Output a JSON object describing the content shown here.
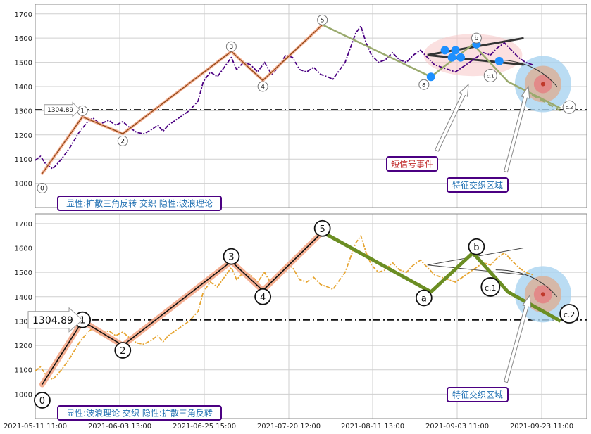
{
  "chart_data": [
    {
      "type": "line",
      "title": "",
      "ylim": [
        900,
        1740
      ],
      "yticks": [
        1000,
        1100,
        1200,
        1300,
        1400,
        1500,
        1600,
        1700
      ],
      "grid": true,
      "reference_line": {
        "value": 1304.89,
        "label": "1304.89"
      },
      "series": [
        {
          "style": "dash-dot",
          "color": "#4b0082",
          "points": [
            [
              0.0,
              1095
            ],
            [
              0.3,
              1112
            ],
            [
              0.6,
              1080
            ],
            [
              1.0,
              1060
            ],
            [
              1.5,
              1100
            ],
            [
              2.0,
              1150
            ],
            [
              2.5,
              1210
            ],
            [
              3.0,
              1255
            ],
            [
              3.3,
              1270
            ],
            [
              3.7,
              1245
            ],
            [
              4.2,
              1260
            ],
            [
              4.6,
              1240
            ],
            [
              5.0,
              1255
            ],
            [
              5.4,
              1230
            ],
            [
              5.8,
              1210
            ],
            [
              6.2,
              1205
            ],
            [
              6.6,
              1220
            ],
            [
              7.0,
              1240
            ],
            [
              7.3,
              1215
            ],
            [
              7.6,
              1240
            ],
            [
              8.0,
              1260
            ],
            [
              8.4,
              1280
            ],
            [
              8.8,
              1300
            ],
            [
              9.3,
              1340
            ],
            [
              9.6,
              1420
            ],
            [
              10.0,
              1460
            ],
            [
              10.4,
              1440
            ],
            [
              10.8,
              1480
            ],
            [
              11.2,
              1520
            ],
            [
              11.5,
              1470
            ],
            [
              11.9,
              1500
            ],
            [
              12.3,
              1490
            ],
            [
              12.7,
              1460
            ],
            [
              13.1,
              1500
            ],
            [
              13.5,
              1450
            ],
            [
              13.9,
              1480
            ],
            [
              14.3,
              1530
            ],
            [
              14.7,
              1520
            ],
            [
              15.1,
              1470
            ],
            [
              15.5,
              1460
            ],
            [
              15.9,
              1480
            ],
            [
              16.3,
              1450
            ],
            [
              16.7,
              1440
            ],
            [
              17.0,
              1430
            ],
            [
              17.4,
              1470
            ],
            [
              17.7,
              1500
            ],
            [
              18.0,
              1560
            ],
            [
              18.3,
              1620
            ],
            [
              18.6,
              1650
            ],
            [
              18.9,
              1580
            ],
            [
              19.2,
              1530
            ],
            [
              19.6,
              1500
            ],
            [
              20.0,
              1510
            ],
            [
              20.4,
              1540
            ],
            [
              20.8,
              1510
            ],
            [
              21.2,
              1500
            ],
            [
              21.6,
              1530
            ],
            [
              22.0,
              1550
            ],
            [
              22.4,
              1520
            ],
            [
              22.8,
              1490
            ],
            [
              23.2,
              1480
            ],
            [
              23.6,
              1470
            ],
            [
              24.0,
              1460
            ],
            [
              24.4,
              1480
            ],
            [
              24.8,
              1500
            ],
            [
              25.2,
              1520
            ],
            [
              25.6,
              1540
            ],
            [
              26.0,
              1530
            ],
            [
              26.4,
              1560
            ],
            [
              26.8,
              1580
            ],
            [
              27.2,
              1550
            ],
            [
              27.6,
              1520
            ],
            [
              28.0,
              1500
            ],
            [
              28.4,
              1490
            ]
          ]
        },
        {
          "style": "solid",
          "color": "#8b4513",
          "highlight": "#f4a98a",
          "points": [
            [
              0.4,
              1040
            ],
            [
              2.7,
              1275
            ],
            [
              5.0,
              1205
            ],
            [
              11.2,
              1545
            ],
            [
              13.0,
              1425
            ],
            [
              16.4,
              1655
            ]
          ]
        },
        {
          "style": "solid",
          "color": "#9aaa6e",
          "points": [
            [
              16.4,
              1655
            ],
            [
              22.6,
              1440
            ],
            [
              25.0,
              1575
            ],
            [
              27.0,
              1420
            ],
            [
              30.0,
              1310
            ]
          ]
        }
      ],
      "wave_labels": [
        {
          "label": "0",
          "x": 0.4,
          "y": 980
        },
        {
          "label": "1",
          "x": 2.7,
          "y": 1300
        },
        {
          "label": "2",
          "x": 5.0,
          "y": 1175
        },
        {
          "label": "3",
          "x": 11.2,
          "y": 1565
        },
        {
          "label": "4",
          "x": 13.0,
          "y": 1400
        },
        {
          "label": "5",
          "x": 16.4,
          "y": 1675
        },
        {
          "label": "a",
          "x": 22.2,
          "y": 1408
        },
        {
          "label": "b",
          "x": 25.2,
          "y": 1600
        },
        {
          "label": "c.1",
          "x": 26.0,
          "y": 1445
        },
        {
          "label": "c.2",
          "x": 30.5,
          "y": 1315
        }
      ],
      "annotations": [
        {
          "text": "显性:扩散三角反转 交织 隐性:波浪理论",
          "color": "#1f6fb2",
          "border": "#4b0082"
        },
        {
          "text": "短信号事件",
          "color": "#c02a2a",
          "border": "#4b0082"
        },
        {
          "text": "特征交织区域",
          "color": "#1f6fb2",
          "border": "#4b0082"
        }
      ]
    },
    {
      "type": "line",
      "title": "",
      "ylim": [
        900,
        1740
      ],
      "yticks": [
        1000,
        1100,
        1200,
        1300,
        1400,
        1500,
        1600,
        1700
      ],
      "grid": true,
      "reference_line": {
        "value": 1304.89,
        "label": "1304.89"
      },
      "x_tick_labels": [
        "2021-05-11 11:00",
        "2021-06-03 13:00",
        "2021-06-25 15:00",
        "2021-07-20 12:00",
        "2021-08-11 13:00",
        "2021-09-03 11:00",
        "2021-09-23 11:00"
      ],
      "series": [
        {
          "style": "dash-dot",
          "color": "#e6a532",
          "points": [
            [
              0.0,
              1095
            ],
            [
              0.3,
              1112
            ],
            [
              0.6,
              1080
            ],
            [
              1.0,
              1060
            ],
            [
              1.5,
              1100
            ],
            [
              2.0,
              1150
            ],
            [
              2.5,
              1210
            ],
            [
              3.0,
              1255
            ],
            [
              3.3,
              1270
            ],
            [
              3.7,
              1245
            ],
            [
              4.2,
              1260
            ],
            [
              4.6,
              1240
            ],
            [
              5.0,
              1255
            ],
            [
              5.4,
              1230
            ],
            [
              5.8,
              1210
            ],
            [
              6.2,
              1205
            ],
            [
              6.6,
              1220
            ],
            [
              7.0,
              1240
            ],
            [
              7.3,
              1215
            ],
            [
              7.6,
              1240
            ],
            [
              8.0,
              1260
            ],
            [
              8.4,
              1280
            ],
            [
              8.8,
              1300
            ],
            [
              9.3,
              1340
            ],
            [
              9.6,
              1420
            ],
            [
              10.0,
              1460
            ],
            [
              10.4,
              1440
            ],
            [
              10.8,
              1480
            ],
            [
              11.2,
              1520
            ],
            [
              11.5,
              1470
            ],
            [
              11.9,
              1500
            ],
            [
              12.3,
              1490
            ],
            [
              12.7,
              1460
            ],
            [
              13.1,
              1500
            ],
            [
              13.5,
              1450
            ],
            [
              13.9,
              1480
            ],
            [
              14.3,
              1530
            ],
            [
              14.7,
              1520
            ],
            [
              15.1,
              1470
            ],
            [
              15.5,
              1460
            ],
            [
              15.9,
              1480
            ],
            [
              16.3,
              1450
            ],
            [
              16.7,
              1440
            ],
            [
              17.0,
              1430
            ],
            [
              17.4,
              1470
            ],
            [
              17.7,
              1500
            ],
            [
              18.0,
              1560
            ],
            [
              18.3,
              1620
            ],
            [
              18.6,
              1650
            ],
            [
              18.9,
              1580
            ],
            [
              19.2,
              1530
            ],
            [
              19.6,
              1500
            ],
            [
              20.0,
              1510
            ],
            [
              20.4,
              1540
            ],
            [
              20.8,
              1510
            ],
            [
              21.2,
              1500
            ],
            [
              21.6,
              1530
            ],
            [
              22.0,
              1550
            ],
            [
              22.4,
              1520
            ],
            [
              22.8,
              1490
            ],
            [
              23.2,
              1480
            ],
            [
              23.6,
              1470
            ],
            [
              24.0,
              1460
            ],
            [
              24.4,
              1480
            ],
            [
              24.8,
              1500
            ],
            [
              25.2,
              1520
            ],
            [
              25.6,
              1540
            ],
            [
              26.0,
              1530
            ],
            [
              26.4,
              1560
            ],
            [
              26.8,
              1580
            ],
            [
              27.2,
              1550
            ],
            [
              27.6,
              1520
            ],
            [
              28.0,
              1500
            ],
            [
              28.4,
              1490
            ]
          ]
        },
        {
          "style": "solid",
          "color": "#111111",
          "highlight": "#f4a98a",
          "points": [
            [
              0.4,
              1040
            ],
            [
              2.7,
              1300
            ],
            [
              5.0,
              1200
            ],
            [
              11.2,
              1545
            ],
            [
              13.0,
              1425
            ],
            [
              16.4,
              1665
            ]
          ]
        },
        {
          "style": "solid",
          "color": "#6b8e23",
          "points": [
            [
              16.4,
              1665
            ],
            [
              22.6,
              1420
            ],
            [
              25.0,
              1580
            ],
            [
              27.0,
              1420
            ],
            [
              30.0,
              1300
            ]
          ]
        }
      ],
      "wave_labels": [
        {
          "label": "0",
          "x": 0.4,
          "y": 975
        },
        {
          "label": "1",
          "x": 2.7,
          "y": 1305
        },
        {
          "label": "2",
          "x": 5.0,
          "y": 1180
        },
        {
          "label": "3",
          "x": 11.2,
          "y": 1565
        },
        {
          "label": "4",
          "x": 13.0,
          "y": 1400
        },
        {
          "label": "5",
          "x": 16.4,
          "y": 1680
        },
        {
          "label": "a",
          "x": 22.2,
          "y": 1395
        },
        {
          "label": "b",
          "x": 25.2,
          "y": 1605
        },
        {
          "label": "c.1",
          "x": 26.0,
          "y": 1440
        },
        {
          "label": "c.2",
          "x": 30.5,
          "y": 1330
        }
      ],
      "annotations": [
        {
          "text": "显性:波浪理论 交织 隐性:扩散三角反转",
          "color": "#1f6fb2",
          "border": "#4b0082"
        },
        {
          "text": "特征交织区域",
          "color": "#1f6fb2",
          "border": "#4b0082"
        }
      ]
    }
  ]
}
